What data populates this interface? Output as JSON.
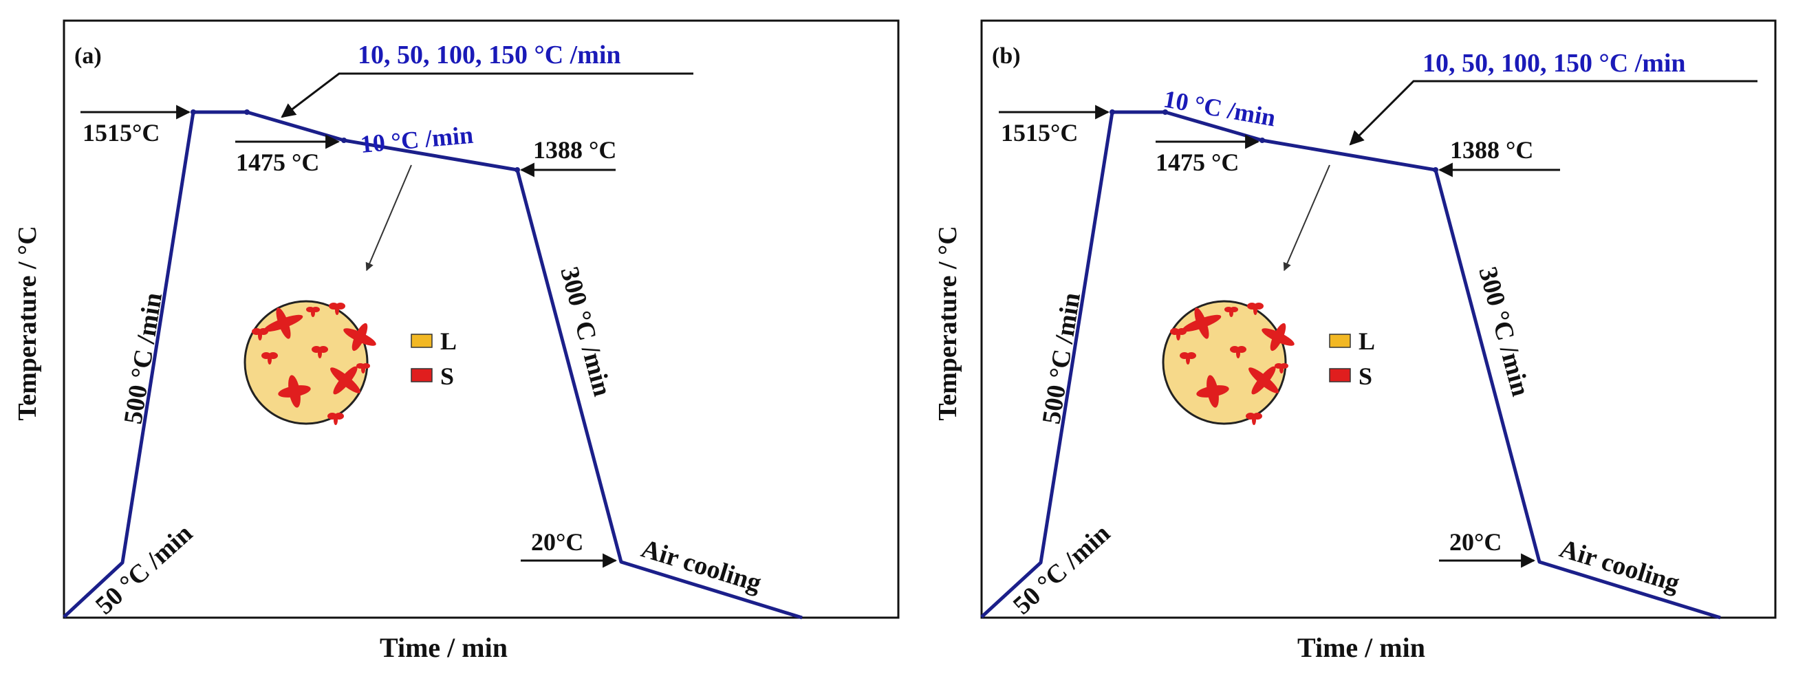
{
  "figure": {
    "panels": [
      {
        "id": "a",
        "panel_label": "(a)",
        "y_axis_label": "Temperature / °C",
        "x_axis_label": "Time / min",
        "rates": {
          "heating_slow": "50 °C /min",
          "heating_fast": "500 °C /min",
          "cooling_variable": "10, 50, 100, 150 °C /min",
          "cooling_fixed": "10 °C /min",
          "quench": "300 °C /min",
          "final": "Air cooling"
        },
        "temperatures": {
          "peak": "1515°C",
          "intermediate": "1475 °C",
          "hold": "1388 °C",
          "room": "20°C"
        },
        "legend": {
          "liquid": "L",
          "solid": "S"
        }
      },
      {
        "id": "b",
        "panel_label": "(b)",
        "y_axis_label": "Temperature / °C",
        "x_axis_label": "Time / min",
        "rates": {
          "heating_slow": "50 °C /min",
          "heating_fast": "500 °C /min",
          "cooling_variable": "10, 50, 100, 150 °C /min",
          "cooling_fixed": "10 °C /min",
          "quench": "300 °C /min",
          "final": "Air cooling"
        },
        "temperatures": {
          "peak": "1515°C",
          "intermediate": "1475 °C",
          "hold": "1388 °C",
          "room": "20°C"
        },
        "legend": {
          "liquid": "L",
          "solid": "S"
        }
      }
    ],
    "colors": {
      "curve": "#1b1f8a",
      "rate_text_blue": "#1a1ab8",
      "liquid": "#f6d98a",
      "liquid_legend": "#f2b824",
      "solid": "#e01e1e"
    }
  }
}
